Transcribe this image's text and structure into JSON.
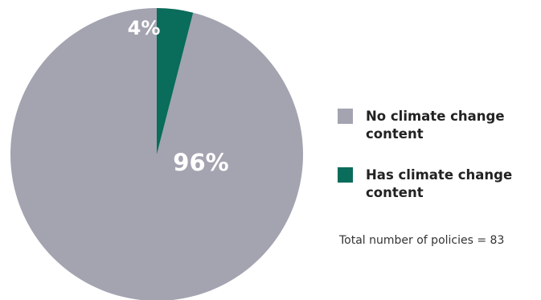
{
  "chart_data": {
    "type": "pie",
    "title": "",
    "slices": [
      {
        "label": "No climate change content",
        "value": 96,
        "display": "96%",
        "color": "#a3a4b0"
      },
      {
        "label": "Has climate change content",
        "value": 4,
        "display": "4%",
        "color": "#0a6c5a"
      }
    ],
    "legend_position": "right",
    "note": "Total number of policies = 83"
  }
}
